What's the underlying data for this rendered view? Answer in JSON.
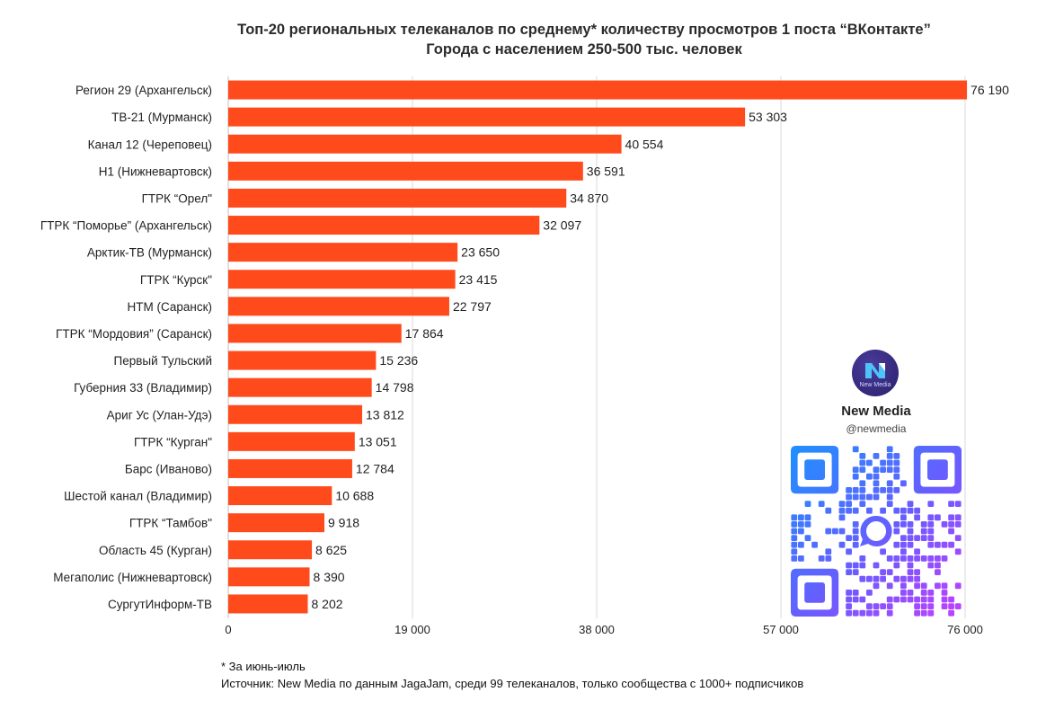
{
  "chart_data": {
    "type": "bar",
    "orientation": "horizontal",
    "title": "Топ-20 региональных телеканалов по среднему* количеству просмотров 1 поста “ВКонтакте”",
    "subtitle": "Города с населением 250-500 тыс. человек",
    "categories": [
      "Регион 29 (Архангельск)",
      "ТВ-21 (Мурманск)",
      "Канал 12 (Череповец)",
      "Н1 (Нижневартовск)",
      "ГТРК “Орел\"",
      "ГТРК “Поморье” (Архангельск)",
      "Арктик-ТВ (Мурманск)",
      "ГТРК “Курск\"",
      "НТМ (Саранск)",
      "ГТРК “Мордовия” (Саранск)",
      "Первый Тульский",
      "Губерния 33 (Владимир)",
      "Ариг Ус (Улан-Удэ)",
      "ГТРК “Курган\"",
      "Барс (Иваново)",
      "Шестой канал (Владимир)",
      "ГТРК “Тамбов\"",
      "Область 45 (Курган)",
      "Мегаполис (Нижневартовск)",
      "СургутИнформ-ТВ"
    ],
    "values": [
      76190,
      53303,
      40554,
      36591,
      34870,
      32097,
      23650,
      23415,
      22797,
      17864,
      15236,
      14798,
      13812,
      13051,
      12784,
      10688,
      9918,
      8625,
      8390,
      8202
    ],
    "value_labels": [
      "76 190",
      "53 303",
      "40 554",
      "36 591",
      "34 870",
      "32 097",
      "23 650",
      "23 415",
      "22 797",
      "17 864",
      "15 236",
      "14 798",
      "13 812",
      "13 051",
      "12 784",
      "10 688",
      "9 918",
      "8 625",
      "8 390",
      "8 202"
    ],
    "xlim": [
      0,
      76000
    ],
    "ticks": [
      0,
      19000,
      38000,
      57000,
      76000
    ],
    "tick_labels": [
      "0",
      "19 000",
      "38 000",
      "57 000",
      "76 000"
    ],
    "grid": true,
    "bar_color": "#ff4a1c",
    "footnote": "* За июнь-июль",
    "source": "Источник: New Media по данным JagaJam, среди 99 телеканалов, только сообщества с 1000+ подписчиков"
  },
  "brand": {
    "logo_caption": "New Media",
    "name": "New Media",
    "handle": "@newmedia"
  }
}
